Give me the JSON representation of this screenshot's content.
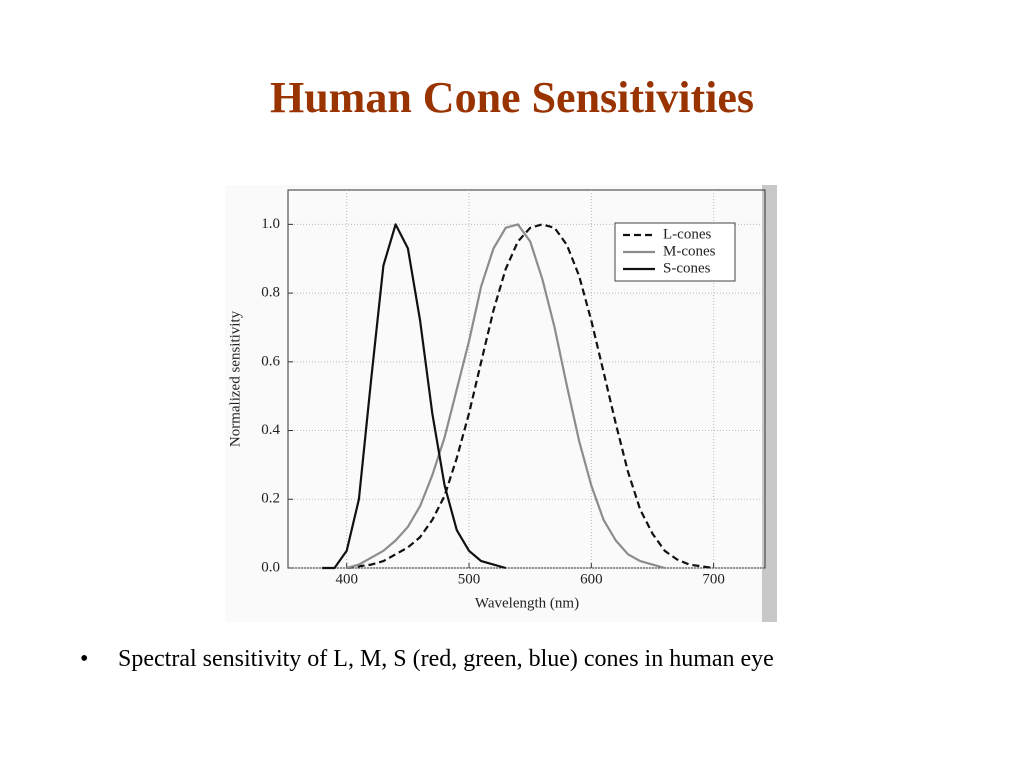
{
  "slide": {
    "title": "Human Cone Sensitivities",
    "bullets": [
      "Spectral sensitivity of L, M, S (red, green, blue) cones in human eye"
    ]
  },
  "chart_data": {
    "type": "line",
    "x_label": "Wavelength (nm)",
    "y_label": "Normalized sensitivity",
    "x": [
      380,
      390,
      400,
      410,
      420,
      430,
      440,
      450,
      460,
      470,
      480,
      490,
      500,
      510,
      520,
      530,
      540,
      550,
      560,
      570,
      580,
      590,
      600,
      610,
      620,
      630,
      640,
      650,
      660,
      670,
      680,
      690,
      700,
      710,
      720
    ],
    "series": [
      {
        "name": "L-cones",
        "color": "#111111",
        "style": "dashed",
        "values": [
          null,
          null,
          0,
          0.005,
          0.01,
          0.02,
          0.04,
          0.06,
          0.09,
          0.14,
          0.21,
          0.32,
          0.45,
          0.6,
          0.75,
          0.87,
          0.95,
          0.99,
          1.0,
          0.99,
          0.94,
          0.85,
          0.72,
          0.57,
          0.42,
          0.28,
          0.17,
          0.1,
          0.05,
          0.025,
          0.01,
          0.005,
          0,
          null,
          null
        ]
      },
      {
        "name": "M-cones",
        "color": "#8c8c8c",
        "style": "solid",
        "values": [
          null,
          null,
          0,
          0.01,
          0.03,
          0.05,
          0.08,
          0.12,
          0.18,
          0.27,
          0.38,
          0.52,
          0.66,
          0.82,
          0.93,
          0.99,
          1.0,
          0.95,
          0.84,
          0.7,
          0.53,
          0.37,
          0.24,
          0.14,
          0.08,
          0.04,
          0.02,
          0.01,
          0,
          null,
          null,
          null,
          null,
          null,
          null
        ]
      },
      {
        "name": "S-cones",
        "color": "#111111",
        "style": "solid",
        "values": [
          0,
          0,
          0.05,
          0.2,
          0.55,
          0.88,
          1.0,
          0.93,
          0.72,
          0.45,
          0.24,
          0.11,
          0.05,
          0.02,
          0.01,
          0,
          null,
          null,
          null,
          null,
          null,
          null,
          null,
          null,
          null,
          null,
          null,
          null,
          null,
          null,
          null,
          null,
          null,
          null,
          null
        ]
      }
    ],
    "xlim": [
      352,
      742
    ],
    "xticks": [
      400,
      500,
      600,
      700
    ],
    "ylim": [
      0,
      1.1
    ],
    "yticks": [
      {
        "value": 0,
        "label": "0.0"
      },
      0.2,
      0.4,
      0.6,
      0.8,
      {
        "value": 1,
        "label": "1.0"
      }
    ],
    "grid": true,
    "legend": "upper right"
  }
}
